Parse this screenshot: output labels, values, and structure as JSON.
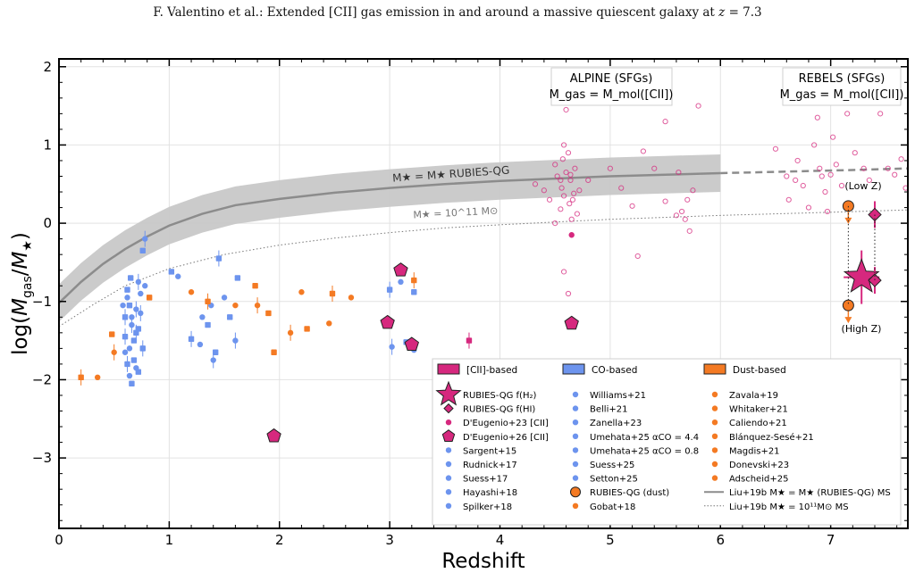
{
  "header": {
    "prefix": "F. Valentino et al.: Extended [CII] gas emission in and around a massive quiescent galaxy at ",
    "z": "z",
    "suffix": " = 7.3"
  },
  "colors": {
    "cii": "#d6287e",
    "co": "#6d94ee",
    "dust": "#f47a23",
    "band": "#c8c8c8",
    "ms_line": "#8c8c8c"
  },
  "chart_data": {
    "type": "scatter",
    "xlabel": "Redshift",
    "ylabel": "log(M_gas/M_★)",
    "xlim": [
      0,
      7.7
    ],
    "ylim": [
      -3.9,
      2.1
    ],
    "xticks": [
      0,
      1,
      2,
      3,
      4,
      5,
      6,
      7
    ],
    "yticks": [
      2,
      1,
      0,
      -1,
      -2,
      -3
    ],
    "ytick_labels": [
      "2",
      "1",
      "0",
      "−1",
      "−2",
      "−3"
    ],
    "grid": true,
    "annotations": {
      "alpine_title": "ALPINE (SFGs)",
      "alpine_sub": "M_gas = M_mol([CII])",
      "rebels_title": "REBELS (SFGs)",
      "rebels_sub": "M_gas = M_mol([CII])",
      "band_label": "M★ = M★ RUBIES-QG",
      "dotted_label": "M★ = 10^11 M⊙",
      "low_z": "(Low Z)",
      "high_z": "(High Z)"
    },
    "ms_curve": {
      "x": [
        0,
        0.2,
        0.4,
        0.6,
        0.8,
        1,
        1.3,
        1.6,
        2,
        2.5,
        3,
        3.5,
        4,
        4.5,
        5,
        5.5,
        6
      ],
      "y": [
        -1.02,
        -0.75,
        -0.52,
        -0.33,
        -0.17,
        -0.03,
        0.12,
        0.23,
        0.31,
        0.39,
        0.45,
        0.5,
        0.54,
        0.57,
        0.6,
        0.62,
        0.64
      ]
    },
    "ms_ext": {
      "x": [
        6,
        6.6,
        7.2,
        7.7
      ],
      "y": [
        0.64,
        0.66,
        0.68,
        0.7
      ]
    },
    "band_half_width": 0.24,
    "ms11_curve": {
      "x": [
        0,
        0.3,
        0.6,
        1,
        1.5,
        2,
        2.5,
        3,
        3.5,
        4,
        5,
        6,
        7,
        7.7
      ],
      "y": [
        -1.32,
        -1.05,
        -0.8,
        -0.58,
        -0.4,
        -0.28,
        -0.19,
        -0.12,
        -0.06,
        -0.02,
        0.05,
        0.1,
        0.14,
        0.17
      ]
    },
    "series": [
      {
        "name": "ALPINE",
        "marker": "open-circle",
        "color": "cii",
        "points": [
          [
            4.32,
            0.5
          ],
          [
            4.4,
            0.42
          ],
          [
            4.45,
            0.3
          ],
          [
            4.5,
            0.75
          ],
          [
            4.52,
            0.6
          ],
          [
            4.55,
            0.18
          ],
          [
            4.56,
            0.45
          ],
          [
            4.57,
            0.82
          ],
          [
            4.58,
            0.35
          ],
          [
            4.6,
            0.65
          ],
          [
            4.62,
            0.9
          ],
          [
            4.63,
            0.25
          ],
          [
            4.64,
            0.55
          ],
          [
            4.66,
            0.3
          ],
          [
            4.68,
            0.7
          ],
          [
            4.7,
            0.12
          ],
          [
            4.72,
            0.42
          ],
          [
            4.58,
            -0.62
          ],
          [
            4.62,
            -0.9
          ],
          [
            4.65,
            0.05
          ],
          [
            4.5,
            0.0
          ],
          [
            4.8,
            0.55
          ],
          [
            5.0,
            0.7
          ],
          [
            5.1,
            0.45
          ],
          [
            5.2,
            0.22
          ],
          [
            5.25,
            -0.42
          ],
          [
            5.3,
            0.92
          ],
          [
            5.4,
            0.7
          ],
          [
            5.5,
            0.28
          ],
          [
            5.5,
            1.3
          ],
          [
            5.6,
            0.1
          ],
          [
            5.62,
            0.65
          ],
          [
            5.65,
            0.15
          ],
          [
            5.68,
            0.05
          ],
          [
            5.7,
            0.3
          ],
          [
            5.72,
            -0.1
          ],
          [
            5.75,
            0.42
          ],
          [
            5.8,
            1.5
          ],
          [
            4.58,
            1.0
          ],
          [
            4.6,
            1.45
          ],
          [
            4.55,
            0.55
          ],
          [
            4.67,
            0.38
          ],
          [
            4.64,
            0.62
          ]
        ]
      },
      {
        "name": "REBELS",
        "marker": "open-circle",
        "color": "cii",
        "points": [
          [
            6.5,
            0.95
          ],
          [
            6.6,
            0.6
          ],
          [
            6.62,
            0.3
          ],
          [
            6.68,
            0.55
          ],
          [
            6.7,
            0.8
          ],
          [
            6.75,
            0.48
          ],
          [
            6.8,
            0.2
          ],
          [
            6.85,
            1.0
          ],
          [
            6.9,
            0.7
          ],
          [
            6.92,
            0.6
          ],
          [
            6.95,
            0.4
          ],
          [
            6.97,
            0.15
          ],
          [
            7.0,
            0.62
          ],
          [
            7.02,
            1.1
          ],
          [
            7.05,
            0.75
          ],
          [
            7.1,
            0.48
          ],
          [
            7.15,
            1.4
          ],
          [
            7.22,
            0.9
          ],
          [
            7.3,
            0.7
          ],
          [
            7.35,
            0.55
          ],
          [
            7.45,
            1.4
          ],
          [
            7.52,
            0.7
          ],
          [
            7.58,
            0.62
          ],
          [
            7.64,
            0.82
          ],
          [
            7.68,
            0.45
          ],
          [
            6.88,
            1.35
          ]
        ]
      },
      {
        "name": "CO-based",
        "marker": "filled",
        "color": "co",
        "points": [
          [
            0.6,
            -1.2
          ],
          [
            0.62,
            -0.95
          ],
          [
            0.64,
            -1.05
          ],
          [
            0.66,
            -1.3
          ],
          [
            0.68,
            -1.5
          ],
          [
            0.6,
            -1.65
          ],
          [
            0.62,
            -1.8
          ],
          [
            0.64,
            -1.95
          ],
          [
            0.66,
            -2.05
          ],
          [
            0.7,
            -1.1
          ],
          [
            0.72,
            -1.35
          ],
          [
            0.74,
            -0.9
          ],
          [
            0.76,
            -1.6
          ],
          [
            0.78,
            -0.8
          ],
          [
            0.65,
            -0.7
          ],
          [
            0.72,
            -0.75
          ],
          [
            0.68,
            -1.75
          ],
          [
            0.7,
            -1.85
          ],
          [
            0.6,
            -1.45
          ],
          [
            0.64,
            -1.6
          ],
          [
            0.76,
            -0.35
          ],
          [
            0.78,
            -0.2
          ],
          [
            0.72,
            -1.9
          ],
          [
            0.66,
            -1.2
          ],
          [
            0.7,
            -1.4
          ],
          [
            0.58,
            -1.05
          ],
          [
            0.62,
            -0.85
          ],
          [
            0.74,
            -1.15
          ],
          [
            1.02,
            -0.62
          ],
          [
            1.08,
            -0.68
          ],
          [
            1.2,
            -1.48
          ],
          [
            1.28,
            -1.55
          ],
          [
            1.35,
            -1.3
          ],
          [
            1.4,
            -1.75
          ],
          [
            1.42,
            -1.65
          ],
          [
            1.3,
            -1.2
          ],
          [
            1.45,
            -0.45
          ],
          [
            1.5,
            -0.95
          ],
          [
            1.55,
            -1.2
          ],
          [
            1.6,
            -1.5
          ],
          [
            1.62,
            -0.7
          ],
          [
            1.38,
            -1.05
          ],
          [
            3.0,
            -0.85
          ],
          [
            3.1,
            -0.75
          ],
          [
            3.22,
            -0.88
          ],
          [
            3.02,
            -1.58
          ],
          [
            3.15,
            -1.52
          ],
          [
            3.22,
            -1.62
          ]
        ]
      },
      {
        "name": "Dust-based",
        "marker": "filled",
        "color": "dust",
        "points": [
          [
            0.2,
            -1.97
          ],
          [
            0.35,
            -1.97
          ],
          [
            0.48,
            -1.42
          ],
          [
            0.5,
            -1.65
          ],
          [
            0.82,
            -0.95
          ],
          [
            1.2,
            -0.88
          ],
          [
            1.35,
            -1.0
          ],
          [
            1.6,
            -1.05
          ],
          [
            1.78,
            -0.8
          ],
          [
            1.8,
            -1.05
          ],
          [
            1.95,
            -1.65
          ],
          [
            2.2,
            -0.88
          ],
          [
            2.48,
            -0.9
          ],
          [
            2.65,
            -0.95
          ],
          [
            1.9,
            -1.15
          ],
          [
            2.1,
            -1.4
          ],
          [
            2.25,
            -1.35
          ],
          [
            2.45,
            -1.28
          ],
          [
            3.22,
            -0.73
          ]
        ]
      },
      {
        "name": "CII-based",
        "marker": "pentagon",
        "color": "cii",
        "points": [
          [
            1.95,
            -2.72
          ],
          [
            2.98,
            -1.27
          ],
          [
            3.1,
            -0.6
          ],
          [
            3.2,
            -1.55
          ],
          [
            4.65,
            -1.28
          ]
        ]
      },
      {
        "name": "CII-small",
        "marker": "filled",
        "color": "cii",
        "points": [
          [
            3.72,
            -1.5
          ],
          [
            4.65,
            -0.15
          ]
        ]
      },
      {
        "name": "RUBIES-QG f(H2)",
        "marker": "star",
        "color": "cii",
        "points": [
          [
            7.28,
            -0.69
          ]
        ]
      },
      {
        "name": "RUBIES-QG f(HI)",
        "marker": "diamond",
        "color": "cii",
        "points": [
          [
            7.4,
            0.11
          ],
          [
            7.4,
            -0.73
          ]
        ]
      },
      {
        "name": "RUBIES-QG (dust)",
        "marker": "circle",
        "color": "dust",
        "points": [
          [
            7.16,
            0.22
          ],
          [
            7.16,
            -1.05
          ]
        ]
      }
    ],
    "legend": {
      "placement": "lower-right",
      "headers": [
        "[CII]-based",
        "CO-based",
        "Dust-based"
      ],
      "col1": [
        "RUBIES-QG f(H₂)",
        "RUBIES-QG f(HI)",
        "D'Eugenio+23 [CII]",
        "D'Eugenio+26 [CII]",
        "Sargent+15",
        "Rudnick+17",
        "Suess+17",
        "Hayashi+18",
        "Spilker+18"
      ],
      "col2": [
        "Williams+21",
        "Belli+21",
        "Zanella+23",
        "Umehata+25 αCO = 4.4",
        "Umehata+25 αCO = 0.8",
        "Suess+25",
        "Setton+25",
        "RUBIES-QG (dust)",
        "Gobat+18"
      ],
      "col3": [
        "Zavala+19",
        "Whitaker+21",
        "Caliendo+21",
        "Blánquez-Sesé+21",
        "Magdis+21",
        "Donevski+23",
        "Adscheid+25",
        "Liu+19b  M★ = M★ (RUBIES-QG) MS",
        "Liu+19b  M★ = 10¹¹M⊙ MS"
      ]
    }
  }
}
